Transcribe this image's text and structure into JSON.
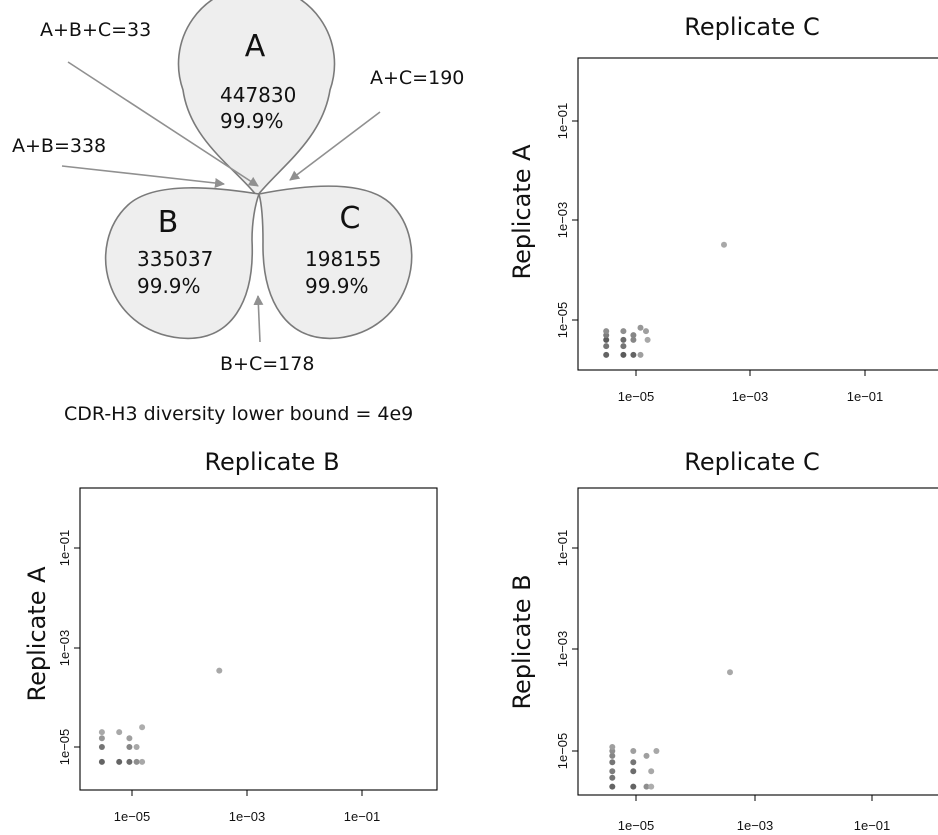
{
  "venn": {
    "sets": [
      {
        "label": "A",
        "count": "447830",
        "percent": "99.9%"
      },
      {
        "label": "B",
        "count": "335037",
        "percent": "99.9%"
      },
      {
        "label": "C",
        "count": "198155",
        "percent": "99.9%"
      }
    ],
    "intersections": {
      "abc": "A+B+C=33",
      "ac": "A+C=190",
      "ab": "A+B=338",
      "bc": "B+C=178"
    },
    "caption": "CDR-H3 diversity lower bound = 4e9"
  },
  "chart_data": [
    {
      "type": "scatter",
      "title": "Replicate C",
      "xlabel": "",
      "ylabel": "Replicate A",
      "x_scale": "log",
      "y_scale": "log",
      "xlim": [
        1e-06,
        1
      ],
      "ylim": [
        1e-06,
        1
      ],
      "x_ticks": [
        "1e−05",
        "1e−03",
        "1e−01"
      ],
      "y_ticks": [
        "1e−05",
        "1e−03",
        "1e−01"
      ],
      "points": [
        {
          "x": 3e-06,
          "y": 2e-06,
          "shade": 0.35
        },
        {
          "x": 3e-06,
          "y": 3e-06,
          "shade": 0.45
        },
        {
          "x": 3e-06,
          "y": 4e-06,
          "shade": 0.3
        },
        {
          "x": 3e-06,
          "y": 5e-06,
          "shade": 0.5
        },
        {
          "x": 3e-06,
          "y": 6e-06,
          "shade": 0.6
        },
        {
          "x": 6e-06,
          "y": 2e-06,
          "shade": 0.3
        },
        {
          "x": 6e-06,
          "y": 3e-06,
          "shade": 0.45
        },
        {
          "x": 6e-06,
          "y": 4e-06,
          "shade": 0.4
        },
        {
          "x": 6e-06,
          "y": 6e-06,
          "shade": 0.6
        },
        {
          "x": 9e-06,
          "y": 2e-06,
          "shade": 0.35
        },
        {
          "x": 9e-06,
          "y": 4e-06,
          "shade": 0.55
        },
        {
          "x": 9e-06,
          "y": 5e-06,
          "shade": 0.55
        },
        {
          "x": 1.2e-05,
          "y": 2e-06,
          "shade": 0.7
        },
        {
          "x": 1.2e-05,
          "y": 7e-06,
          "shade": 0.65
        },
        {
          "x": 1.5e-05,
          "y": 6e-06,
          "shade": 0.7
        },
        {
          "x": 1.6e-05,
          "y": 4e-06,
          "shade": 0.75
        },
        {
          "x": 0.00035,
          "y": 0.00032,
          "shade": 0.75
        }
      ]
    },
    {
      "type": "scatter",
      "title": "Replicate B",
      "xlabel": "",
      "ylabel": "Replicate A",
      "x_scale": "log",
      "y_scale": "log",
      "xlim": [
        1e-06,
        1
      ],
      "ylim": [
        1e-06,
        1
      ],
      "x_ticks": [
        "1e−05",
        "1e−03",
        "1e−01"
      ],
      "y_ticks": [
        "1e−05",
        "1e−03",
        "1e−01"
      ],
      "points": [
        {
          "x": 3e-06,
          "y": 5e-06,
          "shade": 0.35
        },
        {
          "x": 3e-06,
          "y": 1e-05,
          "shade": 0.45
        },
        {
          "x": 3e-06,
          "y": 1.5e-05,
          "shade": 0.65
        },
        {
          "x": 3e-06,
          "y": 2e-05,
          "shade": 0.75
        },
        {
          "x": 6e-06,
          "y": 5e-06,
          "shade": 0.35
        },
        {
          "x": 6e-06,
          "y": 2e-05,
          "shade": 0.75
        },
        {
          "x": 9e-06,
          "y": 5e-06,
          "shade": 0.4
        },
        {
          "x": 9e-06,
          "y": 1e-05,
          "shade": 0.55
        },
        {
          "x": 9e-06,
          "y": 1.5e-05,
          "shade": 0.7
        },
        {
          "x": 1.2e-05,
          "y": 5e-06,
          "shade": 0.6
        },
        {
          "x": 1.2e-05,
          "y": 1e-05,
          "shade": 0.75
        },
        {
          "x": 1.5e-05,
          "y": 5e-06,
          "shade": 0.75
        },
        {
          "x": 1.5e-05,
          "y": 2.5e-05,
          "shade": 0.78
        },
        {
          "x": 0.00033,
          "y": 0.00035,
          "shade": 0.75
        }
      ]
    },
    {
      "type": "scatter",
      "title": "Replicate C",
      "xlabel": "",
      "ylabel": "Replicate B",
      "x_scale": "log",
      "y_scale": "log",
      "xlim": [
        1e-06,
        1
      ],
      "ylim": [
        1e-06,
        1
      ],
      "x_ticks": [
        "1e−05",
        "1e−03",
        "1e−01"
      ],
      "y_ticks": [
        "1e−05",
        "1e−03",
        "1e−01"
      ],
      "points": [
        {
          "x": 4e-06,
          "y": 2e-06,
          "shade": 0.35
        },
        {
          "x": 4e-06,
          "y": 3e-06,
          "shade": 0.45
        },
        {
          "x": 4e-06,
          "y": 4e-06,
          "shade": 0.5
        },
        {
          "x": 4e-06,
          "y": 6e-06,
          "shade": 0.45
        },
        {
          "x": 4e-06,
          "y": 8e-06,
          "shade": 0.55
        },
        {
          "x": 4e-06,
          "y": 1e-05,
          "shade": 0.6
        },
        {
          "x": 4e-06,
          "y": 1.2e-05,
          "shade": 0.7
        },
        {
          "x": 9e-06,
          "y": 2e-06,
          "shade": 0.35
        },
        {
          "x": 9e-06,
          "y": 4e-06,
          "shade": 0.4
        },
        {
          "x": 9e-06,
          "y": 6e-06,
          "shade": 0.45
        },
        {
          "x": 9e-06,
          "y": 1e-05,
          "shade": 0.7
        },
        {
          "x": 1.5e-05,
          "y": 2e-06,
          "shade": 0.6
        },
        {
          "x": 1.5e-05,
          "y": 8e-06,
          "shade": 0.7
        },
        {
          "x": 1.8e-05,
          "y": 4e-06,
          "shade": 0.75
        },
        {
          "x": 1.8e-05,
          "y": 2e-06,
          "shade": 0.78
        },
        {
          "x": 2.2e-05,
          "y": 1e-05,
          "shade": 0.75
        },
        {
          "x": 0.00038,
          "y": 0.00035,
          "shade": 0.75
        }
      ]
    }
  ]
}
